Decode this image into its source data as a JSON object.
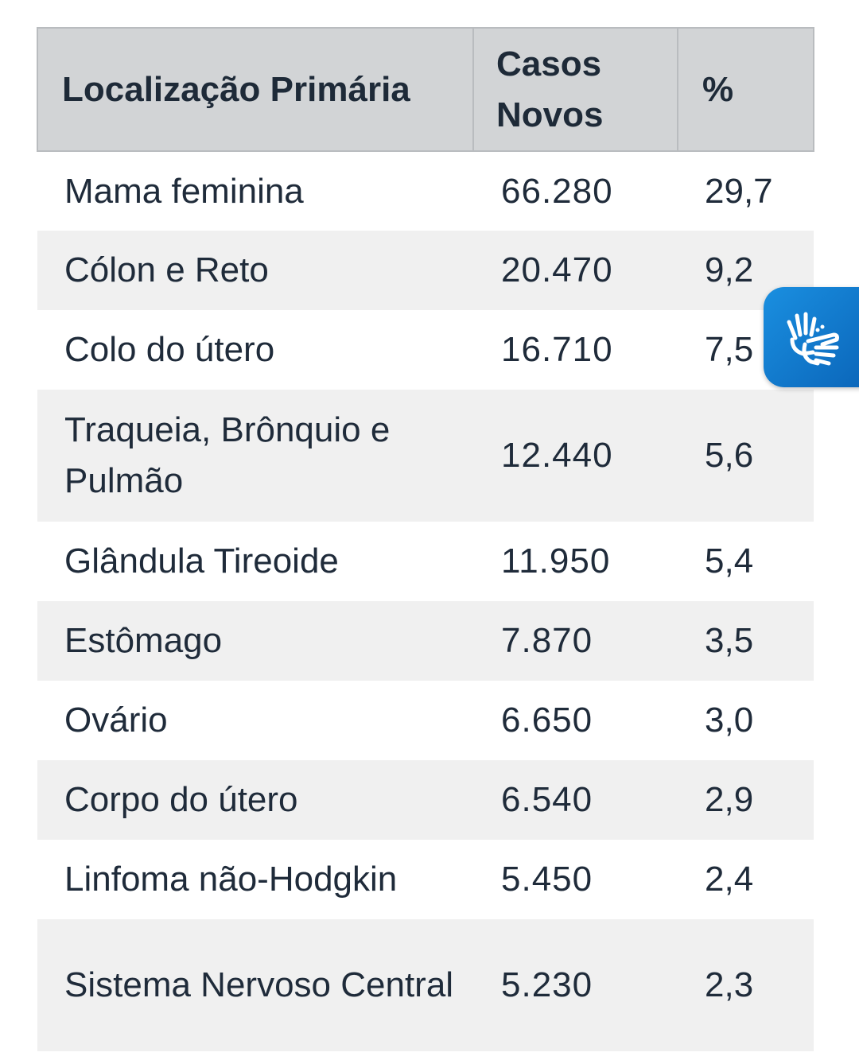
{
  "table": {
    "headers": {
      "location": "Localização Primária",
      "cases_line1": "Casos",
      "cases_line2": "Novos",
      "percent": "%"
    },
    "rows": [
      {
        "location": "Mama feminina",
        "cases": "66.280",
        "percent": "29,7"
      },
      {
        "location": "Cólon e Reto",
        "cases": "20.470",
        "percent": "9,2"
      },
      {
        "location": "Colo do útero",
        "cases": "16.710",
        "percent": "7,5"
      },
      {
        "location": "Traqueia, Brônquio e Pulmão",
        "cases": "12.440",
        "percent": "5,6"
      },
      {
        "location": "Glândula Tireoide",
        "cases": "11.950",
        "percent": "5,4"
      },
      {
        "location": "Estômago",
        "cases": "7.870",
        "percent": "3,5"
      },
      {
        "location": "Ovário",
        "cases": "6.650",
        "percent": "3,0"
      },
      {
        "location": "Corpo do útero",
        "cases": "6.540",
        "percent": "2,9"
      },
      {
        "location": "Linfoma não-Hodgkin",
        "cases": "5.450",
        "percent": "2,4"
      },
      {
        "location": "Sistema Nervoso Central",
        "cases": "5.230",
        "percent": "2,3"
      }
    ]
  },
  "accessibility_widget": {
    "icon": "sign-language-hands-icon",
    "color": "#0a64b8"
  }
}
